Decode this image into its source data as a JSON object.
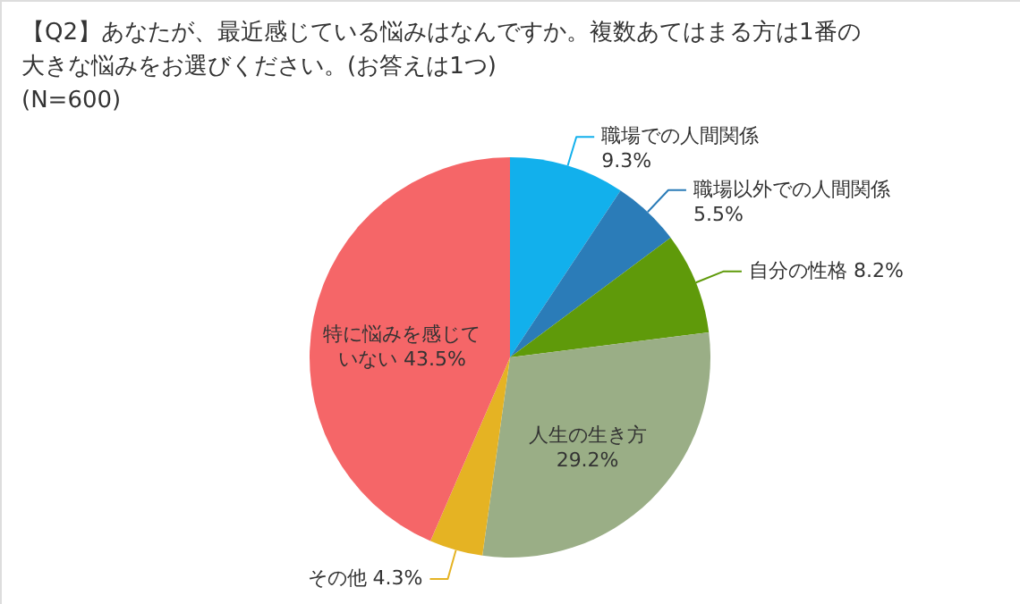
{
  "chart_data": {
    "type": "pie",
    "title": "【Q2】あなたが、最近感じている悩みはなんですか。複数あてはまる方は1番の大きな悩みをお選びください。(お答えは1つ)",
    "subtitle": "(N=600)",
    "categories": [
      "職場での人間関係",
      "職場以外での人間関係",
      "自分の性格",
      "人生の生き方",
      "その他",
      "特に悩みを感じていない"
    ],
    "values": [
      9.3,
      5.5,
      8.2,
      29.2,
      4.3,
      43.5
    ],
    "value_labels": [
      "9.3%",
      "5.5%",
      "8.2%",
      "29.2%",
      "4.3%",
      "43.5%"
    ],
    "colors": [
      "#12b0ec",
      "#2b7cb8",
      "#5f9a0a",
      "#9aae86",
      "#e5b323",
      "#f56668"
    ]
  }
}
